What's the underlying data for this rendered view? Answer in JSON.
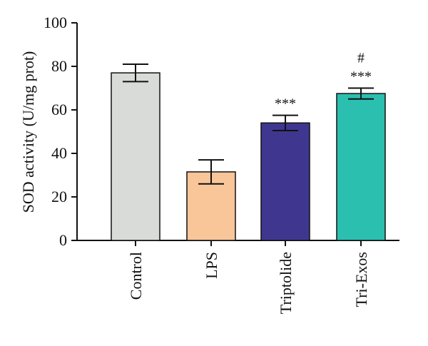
{
  "chart_data": {
    "type": "bar",
    "title": "",
    "xlabel": "",
    "ylabel": "SOD activity (U/mg prot)",
    "ylim": [
      0,
      100
    ],
    "yticks": [
      0,
      20,
      40,
      60,
      80,
      100
    ],
    "categories": [
      "Control",
      "LPS",
      "Triptolide",
      "Tri-Exos"
    ],
    "values": [
      77,
      31.5,
      54,
      67.5
    ],
    "errors": [
      4,
      5.5,
      3.5,
      2.5
    ],
    "colors": [
      "#d9dbd9",
      "#f9c69a",
      "#3f378f",
      "#2bbfb0"
    ],
    "annotations": [
      {
        "category": "Triptolide",
        "lines": [
          "***"
        ]
      },
      {
        "category": "Tri-Exos",
        "lines": [
          "#",
          "***"
        ]
      }
    ],
    "grid": false
  }
}
